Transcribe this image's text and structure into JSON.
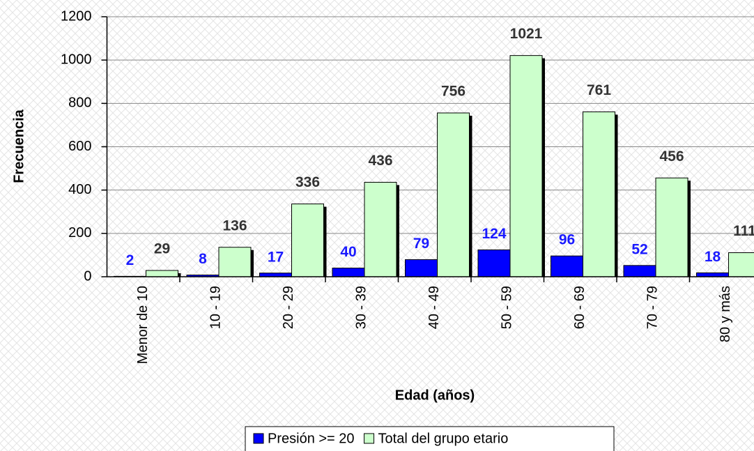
{
  "chart_data": {
    "type": "bar",
    "x_label": "Edad (años)",
    "y_label": "Frecuencia",
    "categories": [
      "Menor de 10",
      "10 - 19",
      "20 - 29",
      "30 - 39",
      "40 - 49",
      "50 - 59",
      "60 - 69",
      "70 - 79",
      "80 y más"
    ],
    "series": [
      {
        "name": "Presión >= 20",
        "color": "#0000ff",
        "label_color": "#1a1aff",
        "values": [
          2,
          8,
          17,
          40,
          79,
          124,
          96,
          52,
          18
        ]
      },
      {
        "name": "Total del grupo etario",
        "color": "#ccffcc",
        "label_color": "#333333",
        "values": [
          29,
          136,
          336,
          436,
          756,
          1021,
          761,
          456,
          111
        ]
      }
    ],
    "ylim": [
      0,
      1200
    ],
    "yticks": [
      0,
      200,
      400,
      600,
      800,
      1000,
      1200
    ],
    "grid": true,
    "legend": "bottom"
  }
}
